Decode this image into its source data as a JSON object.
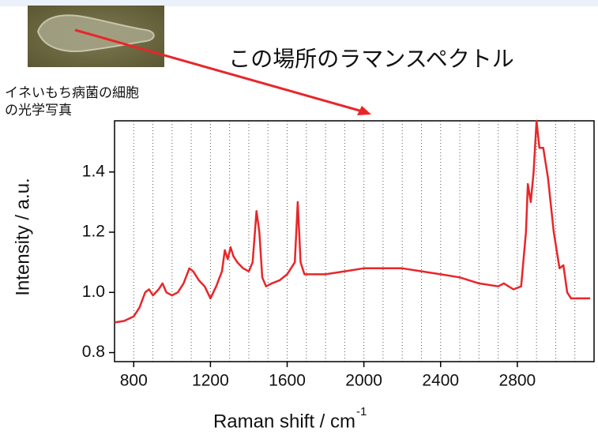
{
  "chart_data": {
    "type": "line",
    "title": "この場所のラマンスペクトル",
    "image_caption": [
      "イネいもち病菌の細胞",
      "の光学写真"
    ],
    "x_label": "Raman shift / cm",
    "x_label_superscript": "-1",
    "y_label": "Intensity / a.u.",
    "x": [
      700,
      750,
      800,
      830,
      860,
      880,
      900,
      930,
      950,
      970,
      1000,
      1030,
      1060,
      1090,
      1110,
      1140,
      1170,
      1200,
      1230,
      1260,
      1275,
      1290,
      1305,
      1320,
      1340,
      1370,
      1400,
      1420,
      1440,
      1455,
      1470,
      1490,
      1520,
      1560,
      1600,
      1640,
      1655,
      1670,
      1690,
      1750,
      1800,
      1900,
      2000,
      2100,
      2200,
      2300,
      2400,
      2500,
      2600,
      2700,
      2730,
      2780,
      2820,
      2845,
      2855,
      2870,
      2885,
      2900,
      2915,
      2935,
      2960,
      2990,
      3020,
      3040,
      3060,
      3080,
      3120,
      3180
    ],
    "series": [
      {
        "color": "#e8262a",
        "values": [
          0.9,
          0.905,
          0.92,
          0.95,
          1.0,
          1.01,
          0.99,
          1.01,
          1.03,
          1.0,
          0.99,
          1.0,
          1.03,
          1.08,
          1.07,
          1.04,
          1.02,
          0.98,
          1.02,
          1.07,
          1.14,
          1.11,
          1.15,
          1.12,
          1.1,
          1.08,
          1.07,
          1.1,
          1.27,
          1.2,
          1.05,
          1.02,
          1.03,
          1.04,
          1.06,
          1.1,
          1.3,
          1.1,
          1.06,
          1.06,
          1.06,
          1.07,
          1.08,
          1.08,
          1.08,
          1.07,
          1.06,
          1.05,
          1.03,
          1.02,
          1.03,
          1.01,
          1.02,
          1.2,
          1.36,
          1.3,
          1.4,
          1.57,
          1.48,
          1.48,
          1.38,
          1.2,
          1.08,
          1.09,
          1.0,
          0.98,
          0.98,
          0.98
        ]
      }
    ],
    "xlim": [
      700,
      3200
    ],
    "ylim": [
      0.77,
      1.57
    ],
    "xticks": [
      800,
      1200,
      1600,
      2000,
      2400,
      2800
    ],
    "yticks": [
      {
        "value": 0.8,
        "label": "0.8"
      },
      {
        "value": 1.0,
        "label": "1.0"
      },
      {
        "value": 1.2,
        "label": "1.2"
      },
      {
        "value": 1.4,
        "label": "1.4"
      }
    ],
    "x_grid": [
      800,
      900,
      1000,
      1100,
      1200,
      1300,
      1400,
      1500,
      1600,
      1700,
      1800,
      1900,
      2000,
      2100,
      2200,
      2300,
      2400,
      2500,
      2600,
      2700,
      2800,
      2900,
      3000,
      3100
    ]
  }
}
